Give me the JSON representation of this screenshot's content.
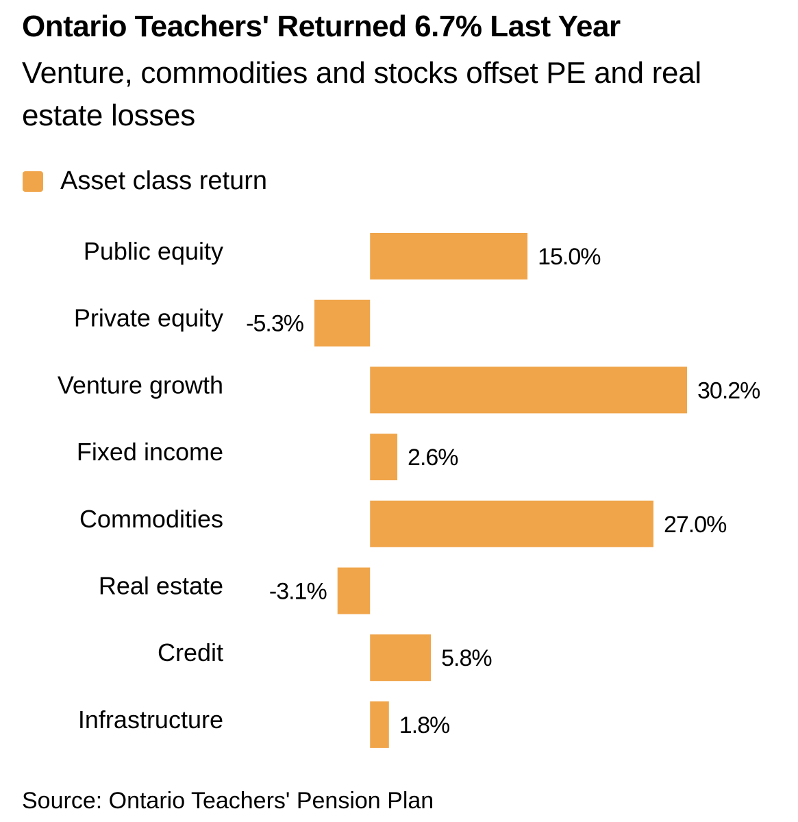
{
  "chart_data": {
    "type": "bar",
    "orientation": "horizontal",
    "title": "Ontario Teachers' Returned 6.7% Last Year",
    "subtitle": "Venture, commodities and stocks offset PE and real estate losses",
    "categories": [
      "Public equity",
      "Private equity",
      "Venture growth",
      "Fixed income",
      "Commodities",
      "Real estate",
      "Credit",
      "Infrastructure"
    ],
    "series": [
      {
        "name": "Asset class return",
        "color": "#f0a54a",
        "values": [
          15.0,
          -5.3,
          30.2,
          2.6,
          27.0,
          -3.1,
          5.8,
          1.8
        ],
        "value_labels": [
          "15.0%",
          "-5.3%",
          "30.2%",
          "2.6%",
          "27.0%",
          "-3.1%",
          "5.8%",
          "1.8%"
        ]
      }
    ],
    "source": "Source: Ontario Teachers' Pension Plan"
  }
}
